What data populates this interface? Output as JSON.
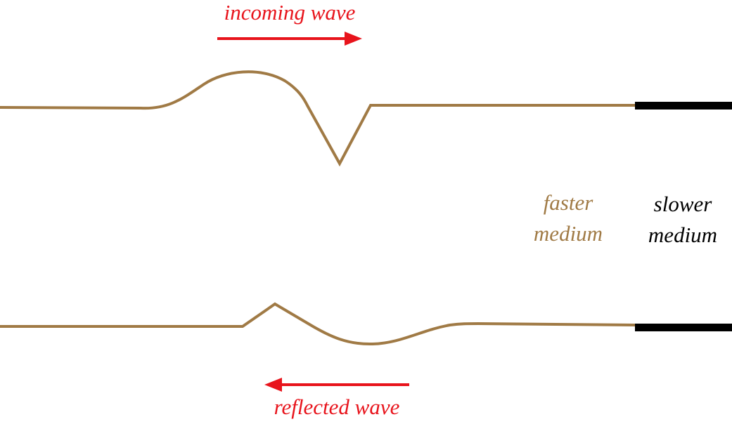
{
  "labels": {
    "incoming": "incoming wave",
    "reflected": "reflected wave",
    "faster_medium": [
      "faster",
      "medium"
    ],
    "slower_medium": [
      "slower",
      "medium"
    ]
  }
}
